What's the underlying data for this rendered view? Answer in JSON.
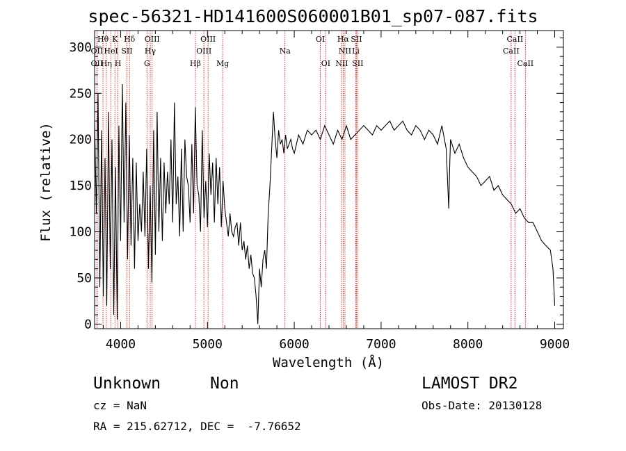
{
  "chart_data": {
    "type": "line",
    "title": "spec-56321-HD141600S060001B01_sp07-087.fits",
    "xlabel": "Wavelength (Å)",
    "ylabel": "Flux (relative)",
    "xlim": [
      3700,
      9100
    ],
    "ylim": [
      -5,
      318
    ],
    "xticks": [
      4000,
      5000,
      6000,
      7000,
      8000,
      9000
    ],
    "yticks": [
      0,
      50,
      100,
      150,
      200,
      250,
      300
    ],
    "grid": false,
    "line_color": "#000000",
    "marker_color": "#cc0000",
    "series": [
      {
        "x": [
          3700,
          3720,
          3740,
          3760,
          3780,
          3800,
          3820,
          3840,
          3860,
          3880,
          3900,
          3920,
          3940,
          3960,
          3980,
          4000,
          4020,
          4040,
          4060,
          4080,
          4100,
          4120,
          4140,
          4160,
          4180,
          4200,
          4220,
          4240,
          4260,
          4280,
          4300,
          4320,
          4340,
          4360,
          4380,
          4400,
          4420,
          4440,
          4460,
          4480,
          4500,
          4520,
          4540,
          4560,
          4580,
          4600,
          4620,
          4640,
          4660,
          4680,
          4700,
          4720,
          4740,
          4760,
          4780,
          4800,
          4820,
          4840,
          4860,
          4880,
          4900,
          4920,
          4940,
          4960,
          4980,
          5000,
          5020,
          5040,
          5060,
          5080,
          5100,
          5120,
          5140,
          5160,
          5180,
          5200,
          5220,
          5240,
          5260,
          5280,
          5300,
          5320,
          5340,
          5360,
          5380,
          5400,
          5420,
          5440,
          5460,
          5480,
          5500,
          5520,
          5540,
          5560,
          5580,
          5600,
          5620,
          5640,
          5660,
          5680,
          5700,
          5720,
          5740,
          5760,
          5780,
          5800,
          5820,
          5840,
          5860,
          5880,
          5900,
          5920,
          5940,
          5960,
          5980,
          6000,
          6050,
          6100,
          6150,
          6200,
          6250,
          6300,
          6350,
          6400,
          6450,
          6500,
          6550,
          6600,
          6650,
          6700,
          6750,
          6800,
          6850,
          6900,
          6950,
          7000,
          7050,
          7100,
          7150,
          7200,
          7250,
          7300,
          7350,
          7400,
          7450,
          7500,
          7550,
          7600,
          7650,
          7700,
          7750,
          7780,
          7790,
          7800,
          7850,
          7900,
          7950,
          8000,
          8050,
          8100,
          8150,
          8200,
          8250,
          8300,
          8350,
          8400,
          8450,
          8500,
          8550,
          8600,
          8650,
          8700,
          8750,
          8800,
          8850,
          8900,
          8950,
          8980,
          9000
        ],
        "values": [
          220,
          120,
          250,
          40,
          210,
          30,
          180,
          20,
          230,
          60,
          200,
          10,
          170,
          5,
          215,
          90,
          260,
          110,
          240,
          70,
          205,
          85,
          180,
          60,
          175,
          90,
          130,
          100,
          165,
          95,
          190,
          60,
          150,
          45,
          210,
          75,
          230,
          100,
          180,
          90,
          175,
          120,
          165,
          130,
          200,
          110,
          240,
          130,
          160,
          95,
          190,
          100,
          200,
          160,
          150,
          110,
          195,
          120,
          235,
          150,
          140,
          100,
          210,
          115,
          155,
          105,
          185,
          140,
          175,
          110,
          180,
          130,
          170,
          105,
          155,
          125,
          110,
          95,
          120,
          100,
          95,
          105,
          110,
          85,
          110,
          80,
          90,
          70,
          85,
          60,
          75,
          55,
          50,
          30,
          0,
          60,
          40,
          70,
          80,
          60,
          120,
          150,
          190,
          230,
          200,
          180,
          210,
          195,
          200,
          185,
          205,
          190,
          195,
          200,
          190,
          185,
          205,
          195,
          210,
          205,
          210,
          200,
          215,
          205,
          195,
          210,
          200,
          215,
          200,
          205,
          210,
          215,
          210,
          205,
          215,
          210,
          215,
          220,
          210,
          215,
          220,
          210,
          205,
          215,
          210,
          200,
          210,
          205,
          195,
          215,
          190,
          125,
          170,
          200,
          185,
          195,
          180,
          170,
          165,
          160,
          150,
          155,
          160,
          145,
          150,
          140,
          135,
          130,
          120,
          125,
          115,
          110,
          110,
          100,
          90,
          85,
          80,
          60,
          20
        ]
      }
    ],
    "line_markers": [
      {
        "label": "Hθ",
        "x": 3797,
        "row": 1
      },
      {
        "label": "OII",
        "x": 3727,
        "row": 2
      },
      {
        "label": "OII",
        "x": 3727,
        "row": 3
      },
      {
        "label": "Hη",
        "x": 3835,
        "row": 3
      },
      {
        "label": "K",
        "x": 3934,
        "row": 1
      },
      {
        "label": "HeI",
        "x": 3889,
        "row": 2
      },
      {
        "label": "SII",
        "x": 4072,
        "row": 2
      },
      {
        "label": "H",
        "x": 3969,
        "row": 3
      },
      {
        "label": "Hδ",
        "x": 4102,
        "row": 1
      },
      {
        "label": "OIII",
        "x": 4363,
        "row": 1
      },
      {
        "label": "Hγ",
        "x": 4341,
        "row": 2
      },
      {
        "label": "G",
        "x": 4304,
        "row": 3
      },
      {
        "label": "OIII",
        "x": 5007,
        "row": 1
      },
      {
        "label": "OIII",
        "x": 4959,
        "row": 2
      },
      {
        "label": "Hβ",
        "x": 4861,
        "row": 3
      },
      {
        "label": "Mg",
        "x": 5175,
        "row": 3
      },
      {
        "label": "Na",
        "x": 5893,
        "row": 2
      },
      {
        "label": "OI",
        "x": 6300,
        "row": 1
      },
      {
        "label": "OI",
        "x": 6363,
        "row": 3
      },
      {
        "label": "Hα",
        "x": 6563,
        "row": 1
      },
      {
        "label": "SII",
        "x": 6716,
        "row": 1
      },
      {
        "label": "NII",
        "x": 6584,
        "row": 2
      },
      {
        "label": "Li",
        "x": 6708,
        "row": 2
      },
      {
        "label": "NII",
        "x": 6548,
        "row": 3
      },
      {
        "label": "SII",
        "x": 6731,
        "row": 3
      },
      {
        "label": "CaII",
        "x": 8542,
        "row": 1
      },
      {
        "label": "CaII",
        "x": 8498,
        "row": 2
      },
      {
        "label": "CaII",
        "x": 8662,
        "row": 3
      }
    ]
  },
  "info": {
    "class_label": "Unknown",
    "subclass_label": "Non",
    "release": "LAMOST DR2",
    "cz": "cz = NaN",
    "obs_date": "Obs-Date: 20130128",
    "coords": "RA = 215.62712, DEC =  -7.76652"
  }
}
